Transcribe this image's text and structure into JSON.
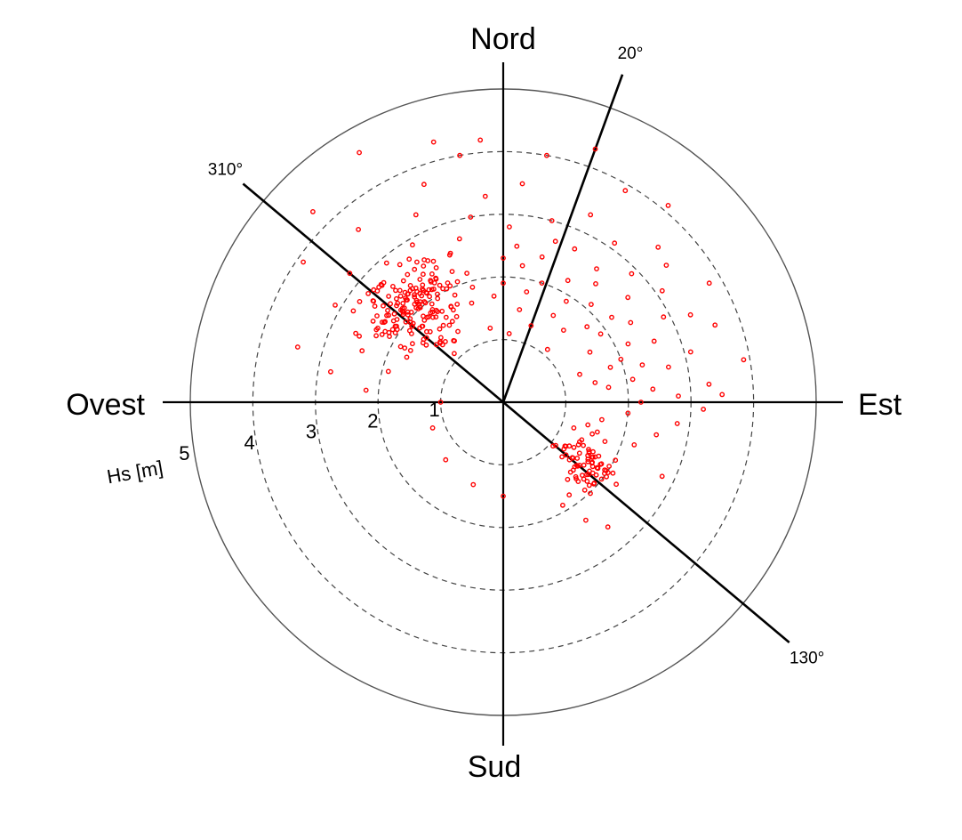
{
  "chart_data": {
    "type": "scatter",
    "projection": "polar",
    "radial_axis": {
      "label": "Hs [m]",
      "max": 5,
      "ticks": [
        1,
        2,
        3,
        4,
        5
      ],
      "label_angle_deg": 260
    },
    "cardinals": {
      "north": "Nord",
      "south": "Sud",
      "east": "Est",
      "west": "Ovest"
    },
    "direction_lines": [
      {
        "deg": 20,
        "label": "20°"
      },
      {
        "deg": 130,
        "label": "130°"
      },
      {
        "deg": 310,
        "label": "310°"
      }
    ],
    "point_color": "#ff0000",
    "clusters": [
      {
        "center_deg": 318,
        "center_hs": 2.05,
        "spread_deg": 9,
        "spread_hs": 0.32,
        "count": 170
      },
      {
        "center_deg": 125,
        "center_hs": 1.65,
        "spread_deg": 7,
        "spread_hs": 0.25,
        "count": 75
      }
    ],
    "points": [
      [
        290,
        2.4
      ],
      [
        300,
        3.1
      ],
      [
        305,
        3.9
      ],
      [
        315,
        4.3
      ],
      [
        330,
        4.6
      ],
      [
        345,
        4.3
      ],
      [
        355,
        4.2
      ],
      [
        5,
        3.5
      ],
      [
        10,
        4.0
      ],
      [
        20,
        4.3
      ],
      [
        30,
        3.9
      ],
      [
        40,
        4.1
      ],
      [
        50,
        3.4
      ],
      [
        60,
        3.8
      ],
      [
        70,
        3.6
      ],
      [
        80,
        3.9
      ],
      [
        85,
        3.3
      ],
      [
        95,
        2.0
      ],
      [
        100,
        1.6
      ],
      [
        105,
        1.4
      ],
      [
        110,
        1.2
      ],
      [
        140,
        2.6
      ],
      [
        180,
        1.5
      ],
      [
        200,
        1.4
      ],
      [
        225,
        1.3
      ],
      [
        250,
        1.2
      ],
      [
        270,
        1.0
      ],
      [
        275,
        2.2
      ],
      [
        280,
        2.8
      ],
      [
        285,
        3.4
      ],
      [
        295,
        2.6
      ],
      [
        300,
        2.1
      ],
      [
        310,
        3.2
      ],
      [
        320,
        3.6
      ],
      [
        330,
        2.9
      ],
      [
        335,
        3.3
      ],
      [
        340,
        2.5
      ],
      [
        345,
        2.7
      ],
      [
        350,
        3.0
      ],
      [
        355,
        3.3
      ],
      [
        2,
        2.8
      ],
      [
        5,
        2.5
      ],
      [
        8,
        2.2
      ],
      [
        12,
        1.8
      ],
      [
        15,
        2.4
      ],
      [
        18,
        2.0
      ],
      [
        25,
        2.7
      ],
      [
        28,
        2.2
      ],
      [
        32,
        1.9
      ],
      [
        35,
        2.6
      ],
      [
        38,
        2.4
      ],
      [
        42,
        2.1
      ],
      [
        45,
        2.9
      ],
      [
        50,
        2.6
      ],
      [
        52,
        2.2
      ],
      [
        55,
        1.9
      ],
      [
        58,
        2.4
      ],
      [
        62,
        2.9
      ],
      [
        65,
        2.2
      ],
      [
        68,
        2.6
      ],
      [
        70,
        2.0
      ],
      [
        72,
        1.8
      ],
      [
        75,
        2.3
      ],
      [
        78,
        2.7
      ],
      [
        80,
        2.1
      ],
      [
        82,
        1.7
      ],
      [
        85,
        2.4
      ],
      [
        88,
        2.8
      ],
      [
        90,
        2.2
      ],
      [
        60,
        1.6
      ],
      [
        40,
        1.5
      ],
      [
        30,
        1.6
      ],
      [
        20,
        1.3
      ],
      [
        10,
        1.5
      ],
      [
        355,
        1.7
      ],
      [
        345,
        1.9
      ],
      [
        325,
        1.5
      ],
      [
        295,
        1.7
      ],
      [
        285,
        1.9
      ],
      [
        350,
        1.2
      ],
      [
        0,
        1.9
      ],
      [
        15,
        3.0
      ],
      [
        25,
        3.3
      ],
      [
        35,
        3.1
      ],
      [
        45,
        3.5
      ],
      [
        55,
        3.1
      ],
      [
        65,
        3.3
      ],
      [
        75,
        3.1
      ],
      [
        88,
        3.5
      ],
      [
        92,
        3.2
      ],
      [
        97,
        2.8
      ],
      [
        102,
        2.5
      ],
      [
        108,
        2.2
      ],
      [
        330,
        2.2
      ],
      [
        340,
        3.7
      ],
      [
        350,
        4.0
      ],
      [
        305,
        2.8
      ],
      [
        315,
        2.7
      ],
      [
        5,
        1.1
      ],
      [
        40,
        1.1
      ],
      [
        70,
        1.3
      ],
      [
        115,
        2.8
      ],
      [
        145,
        2.3
      ],
      [
        150,
        1.9
      ],
      [
        310,
        1.6
      ],
      [
        320,
        2.9
      ],
      [
        335,
        2.1
      ],
      [
        0,
        2.3
      ],
      [
        18,
        2.7
      ],
      [
        48,
        1.8
      ],
      [
        78,
        1.5
      ]
    ]
  }
}
